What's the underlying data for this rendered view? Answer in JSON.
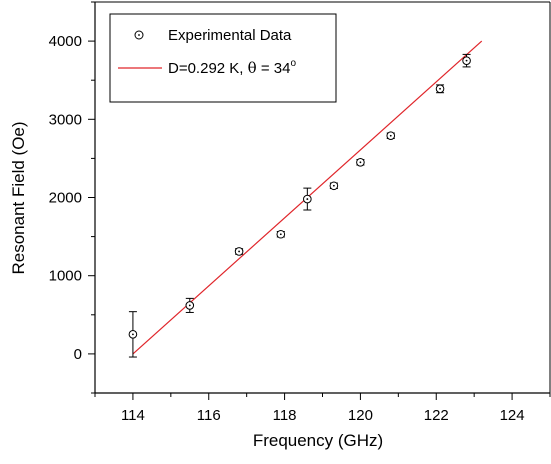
{
  "chart_data": {
    "type": "scatter",
    "xlabel": "Frequency (GHz)",
    "ylabel": "Resonant Field (Oe)",
    "xlim": [
      113,
      125
    ],
    "ylim": [
      -500,
      4500
    ],
    "x_ticks": [
      "114",
      "116",
      "118",
      "120",
      "122",
      "124"
    ],
    "y_ticks": [
      "0",
      "1000",
      "2000",
      "3000",
      "4000"
    ],
    "grid": false,
    "legend": "top-left",
    "series": [
      {
        "name": "Experimental Data",
        "kind": "points-with-error-bars",
        "marker": "open-circle",
        "color": "#000000",
        "points": [
          {
            "x": 114.0,
            "y": 250,
            "err": 290
          },
          {
            "x": 115.5,
            "y": 620,
            "err": 90
          },
          {
            "x": 116.8,
            "y": 1310,
            "err": 35
          },
          {
            "x": 117.9,
            "y": 1530,
            "err": 35
          },
          {
            "x": 118.6,
            "y": 1980,
            "err": 140
          },
          {
            "x": 119.3,
            "y": 2150,
            "err": 35
          },
          {
            "x": 120.0,
            "y": 2450,
            "err": 35
          },
          {
            "x": 120.8,
            "y": 2790,
            "err": 35
          },
          {
            "x": 122.1,
            "y": 3390,
            "err": 50
          },
          {
            "x": 122.8,
            "y": 3750,
            "err": 80
          }
        ]
      },
      {
        "name_prefix": "D=0.292 K, ",
        "name_theta": "θ",
        "name_mid": " = 34",
        "name_sup": "o",
        "kind": "fit-line",
        "color": "#e0262b",
        "x": [
          114.0,
          123.2
        ],
        "y": [
          0,
          4000
        ]
      }
    ]
  }
}
